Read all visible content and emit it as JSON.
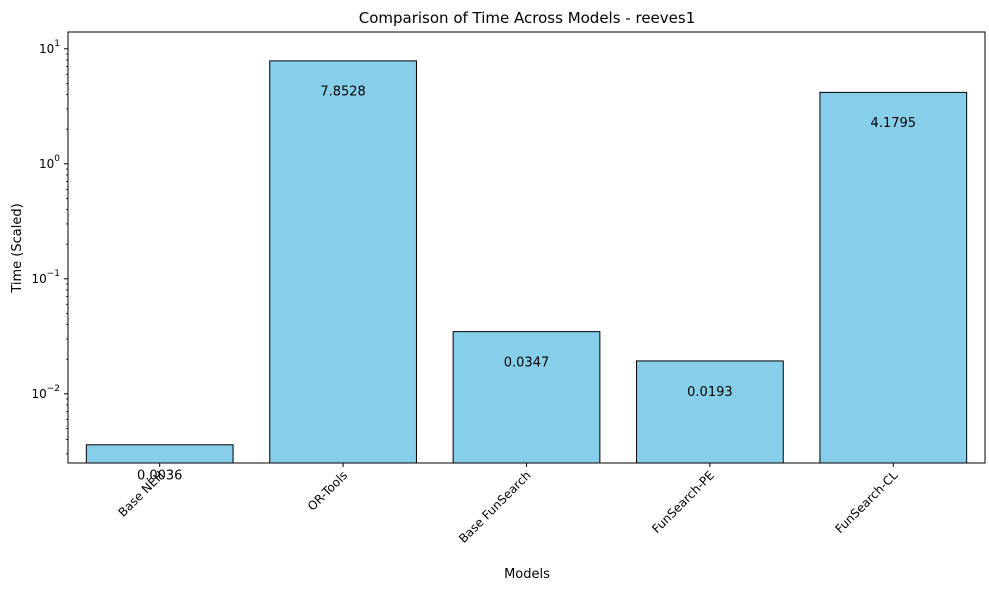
{
  "chart_data": {
    "type": "bar",
    "title": "Comparison of Time Across Models - reeves1",
    "xlabel": "Models",
    "ylabel": "Time (Scaled)",
    "yscale": "log",
    "ylim": [
      0.0025,
      14
    ],
    "y_ticks": [
      {
        "value": 0.01,
        "base": "10",
        "exp": "−2"
      },
      {
        "value": 0.1,
        "base": "10",
        "exp": "−1"
      },
      {
        "value": 1,
        "base": "10",
        "exp": "0"
      },
      {
        "value": 10,
        "base": "10",
        "exp": "1"
      }
    ],
    "categories": [
      "Base NEH",
      "OR-Tools",
      "Base FunSearch",
      "FunSearch-PE",
      "FunSearch-CL"
    ],
    "values": [
      0.0036,
      7.8528,
      0.0347,
      0.0193,
      4.1795
    ],
    "value_labels": [
      "0.0036",
      "7.8528",
      "0.0347",
      "0.0193",
      "4.1795"
    ],
    "bar_color": "#87ceeb",
    "edge_color": "#000000",
    "grid": false,
    "legend": "none"
  }
}
